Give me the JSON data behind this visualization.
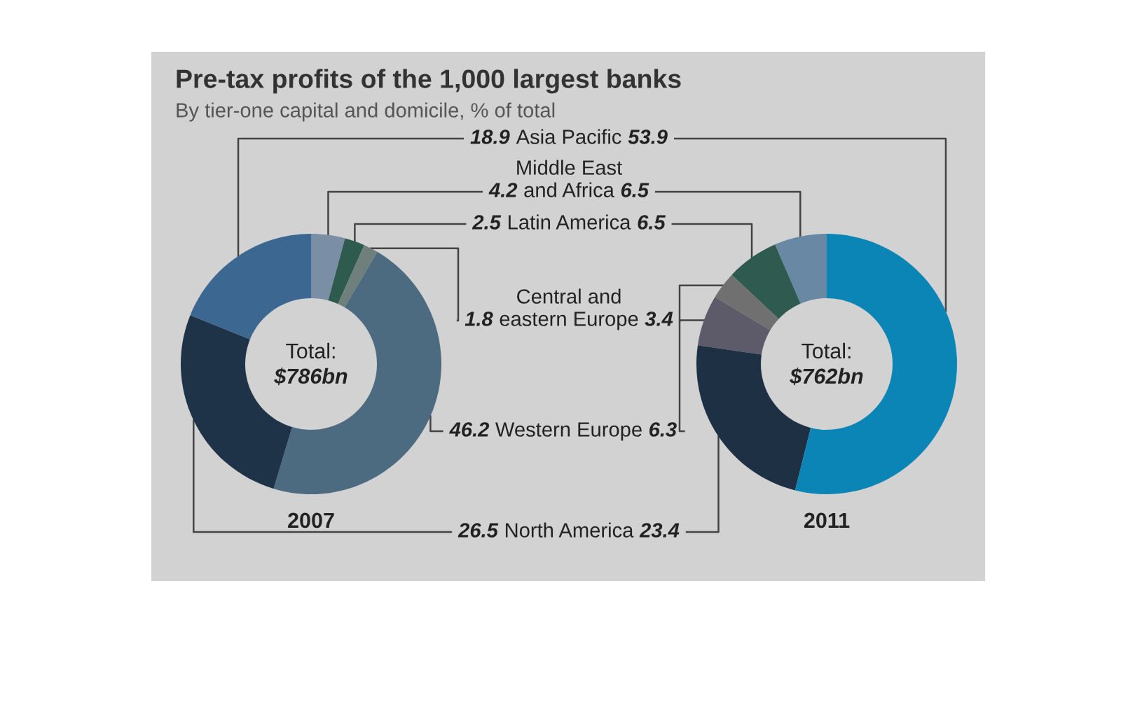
{
  "chart_data": [
    {
      "type": "donut",
      "title": "Pre-tax profits of the 1,000 largest banks",
      "subtitle": "By tier-one capital and domicile, % of total",
      "xlabel": "2007",
      "annotations": [
        "Total:",
        "$786bn"
      ],
      "data_labels": true,
      "categories": [
        "Middle East and Africa",
        "Latin America",
        "Central and eastern Europe",
        "Western Europe",
        "North America",
        "Asia Pacific"
      ],
      "values": [
        4.2,
        2.5,
        1.8,
        46.2,
        26.5,
        18.9
      ],
      "colors": [
        "#7a8ea6",
        "#2f5b4f",
        "#6e7f7c",
        "#4d6b80",
        "#1e3347",
        "#3b6790"
      ]
    },
    {
      "type": "donut",
      "xlabel": "2011",
      "annotations": [
        "Total:",
        "$762bn"
      ],
      "data_labels": true,
      "categories": [
        null,
        null,
        null,
        null,
        null,
        null
      ],
      "values": [
        6.5,
        6.5,
        3.4,
        6.3,
        23.4,
        53.9
      ],
      "colors": [
        "#6888a4",
        "#2f5a50",
        "#707070",
        "#5d5a6a",
        "#1e3044",
        "#0a85b5"
      ]
    }
  ]
}
